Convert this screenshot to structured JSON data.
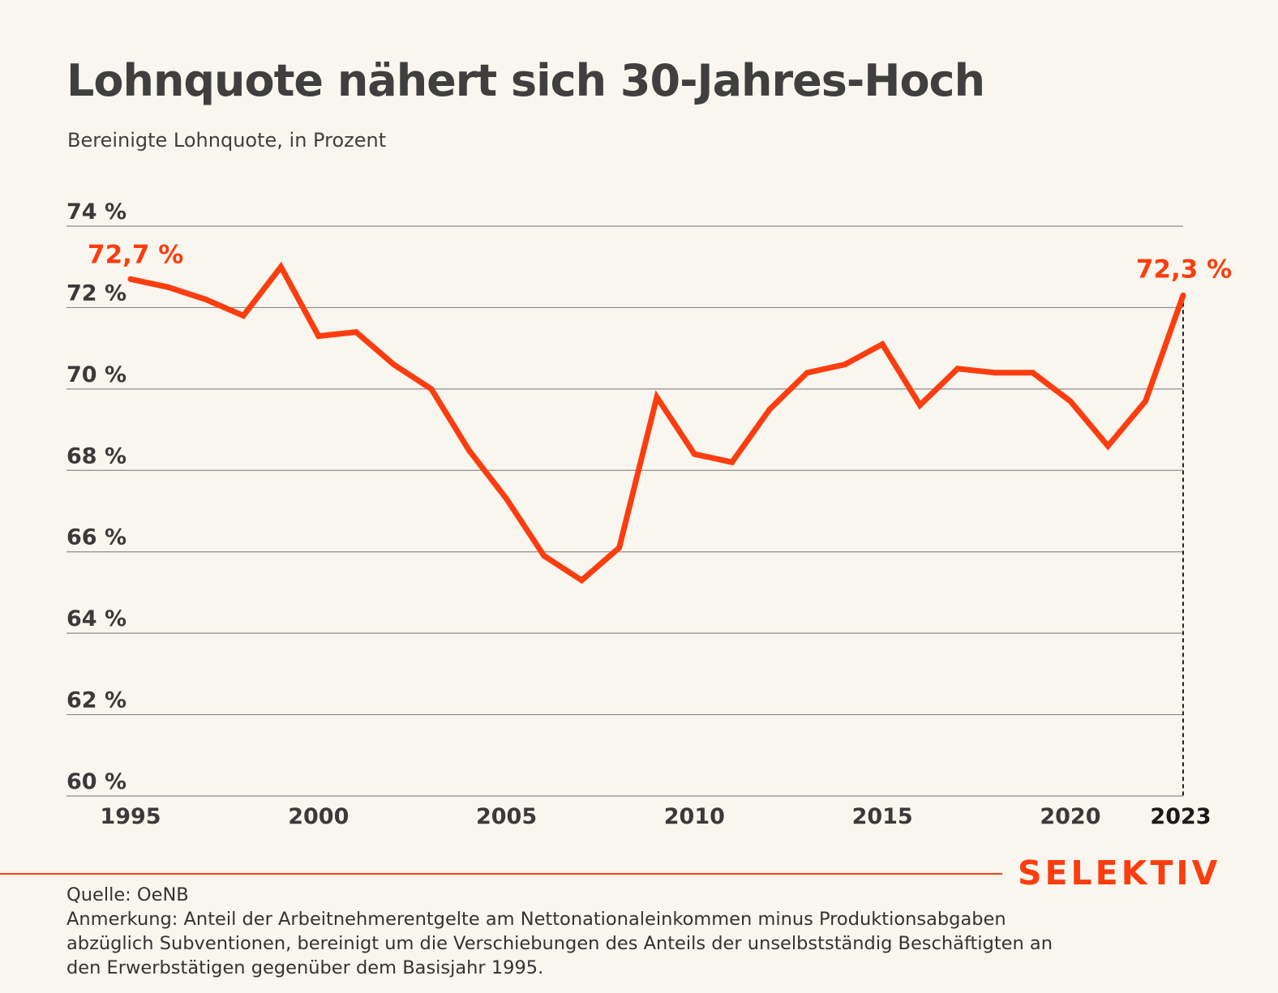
{
  "header": {
    "title": "Lohnquote nähert sich 30-Jahres-Hoch",
    "subtitle": "Bereinigte Lohnquote, in Prozent"
  },
  "colors": {
    "accent": "#fc3d0f",
    "grid": "#8c8c8c",
    "background": "#f8f6ee",
    "text": "#3f3f3f"
  },
  "chart_data": {
    "type": "line",
    "title": "Lohnquote nähert sich 30-Jahres-Hoch",
    "subtitle": "Bereinigte Lohnquote, in Prozent",
    "xlabel": "",
    "ylabel": "",
    "ylim": [
      60,
      74
    ],
    "xlim": [
      1995,
      2023
    ],
    "y_ticks": [
      60,
      62,
      64,
      66,
      68,
      70,
      72,
      74
    ],
    "y_tick_labels": [
      "60 %",
      "62 %",
      "64 %",
      "66 %",
      "68 %",
      "70 %",
      "72 %",
      "74 %"
    ],
    "x_ticks": [
      1995,
      2000,
      2005,
      2010,
      2015,
      2020,
      2023
    ],
    "x_tick_labels": [
      "1995",
      "2000",
      "2005",
      "2010",
      "2015",
      "2020",
      "2023"
    ],
    "grid": "horizontal",
    "x": [
      1995,
      1996,
      1997,
      1998,
      1999,
      2000,
      2001,
      2002,
      2003,
      2004,
      2005,
      2006,
      2007,
      2008,
      2009,
      2010,
      2011,
      2012,
      2013,
      2014,
      2015,
      2016,
      2017,
      2018,
      2019,
      2020,
      2021,
      2022,
      2023
    ],
    "series": [
      {
        "values": [
          72.7,
          72.5,
          72.2,
          71.8,
          73.0,
          71.3,
          71.4,
          70.6,
          70.0,
          68.5,
          67.3,
          65.9,
          65.3,
          66.1,
          69.8,
          68.4,
          68.2,
          69.5,
          70.4,
          70.6,
          71.1,
          69.6,
          70.5,
          70.4,
          70.4,
          69.7,
          68.6,
          69.7,
          72.3
        ]
      }
    ],
    "annotations": [
      {
        "x": 1995,
        "y": 72.7,
        "text": "72,7 %"
      },
      {
        "x": 2023,
        "y": 72.3,
        "text": "72,3 %"
      }
    ],
    "reference_line": {
      "x": 2023,
      "style": "dashed"
    }
  },
  "footer": {
    "brand": "SELEKTIV",
    "source": "Quelle: OeNB",
    "note_lines": [
      "Anmerkung: Anteil der Arbeitnehmerentgelte am Nettonationaleinkommen minus Produktionsabgaben",
      "abzüglich Subventionen, bereinigt um die Verschiebungen des Anteils der unselbstständig Beschäftigten an",
      "den Erwerbstätigen gegenüber dem Basisjahr 1995."
    ]
  }
}
